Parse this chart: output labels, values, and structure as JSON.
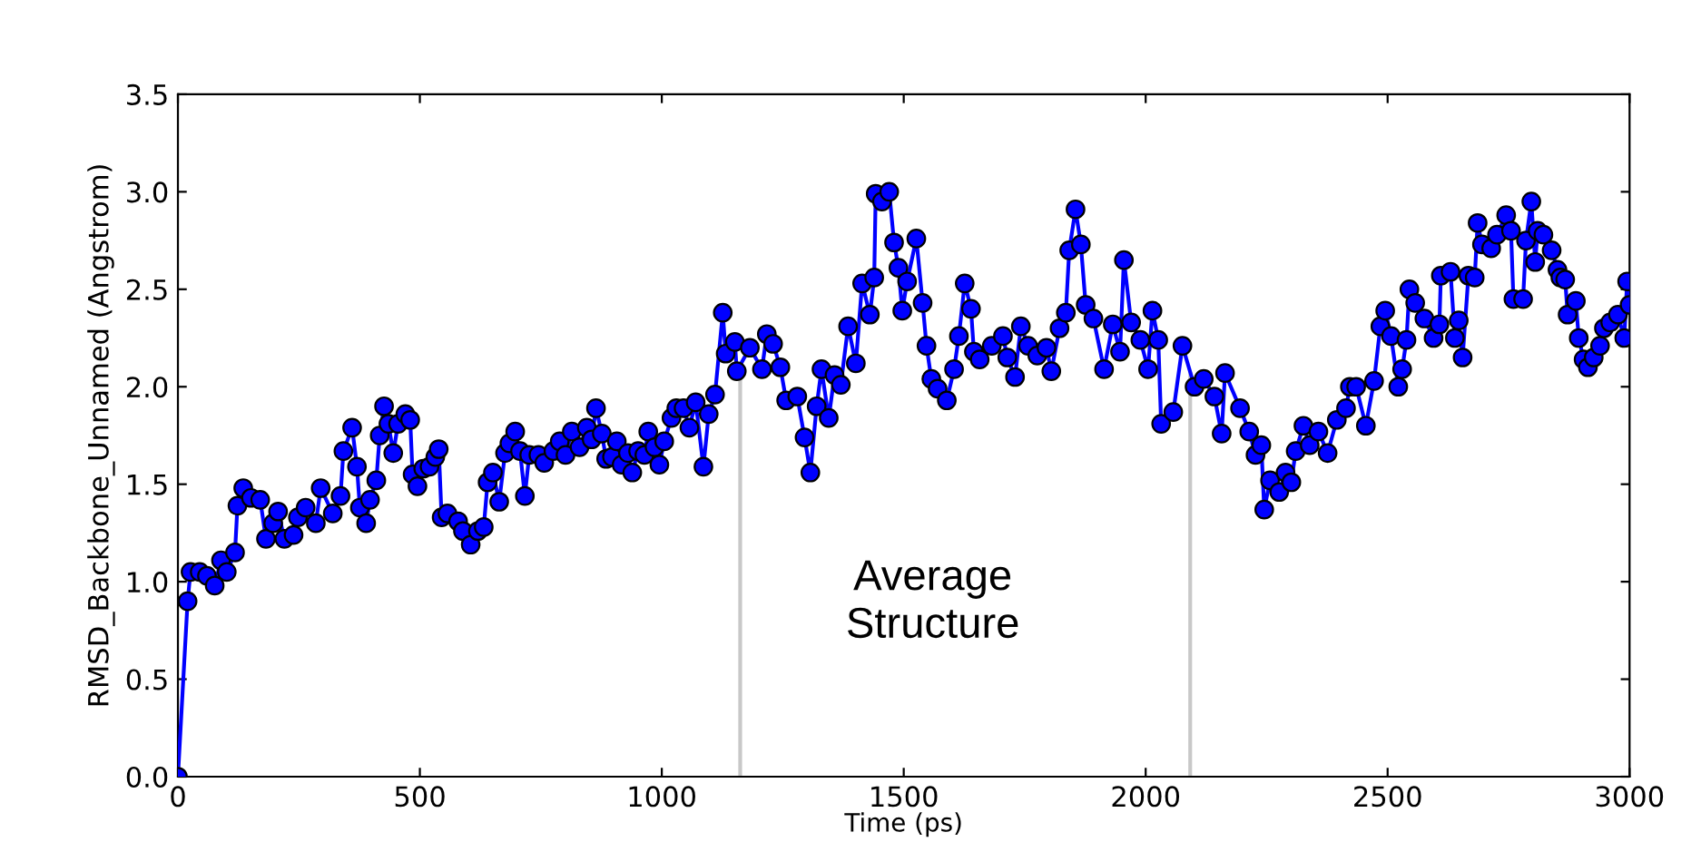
{
  "chart_data": {
    "type": "line",
    "xlabel": "Time (ps)",
    "ylabel": "RMSD_Backbone_Unnamed (Angstrom)",
    "xlim": [
      0,
      3000
    ],
    "xticks": [
      0,
      500,
      1000,
      1500,
      2000,
      2500,
      3000
    ],
    "ylim": [
      0.0,
      3.5
    ],
    "yticks": [
      {
        "value": 0,
        "label": "0.0"
      },
      {
        "value": 0.5,
        "label": "0.5"
      },
      {
        "value": 1,
        "label": "1.0"
      },
      {
        "value": 1.5,
        "label": "1.5"
      },
      {
        "value": 2,
        "label": "2.0"
      },
      {
        "value": 2.5,
        "label": "2.5"
      },
      {
        "value": 3,
        "label": "3.0"
      },
      {
        "value": 3.5,
        "label": "3.5"
      }
    ],
    "grid": false,
    "marker": "circle",
    "line_style": "solid",
    "annotations": [
      "Average\nStructure"
    ],
    "ref_lines": [
      {
        "axis": "x",
        "value": 1162,
        "label": null,
        "color": "#c8c8c8"
      },
      {
        "axis": "x",
        "value": 2092,
        "label": null,
        "color": "#c8c8c8"
      }
    ],
    "series": [
      {
        "color": "#0000ff",
        "x": [
          0,
          20,
          26,
          45,
          60,
          76,
          89,
          101,
          118,
          123,
          135,
          151,
          170,
          182,
          197,
          207,
          220,
          239,
          248,
          264,
          285,
          295,
          320,
          336,
          342,
          360,
          370,
          376,
          389,
          397,
          410,
          417,
          426,
          435,
          445,
          455,
          470,
          480,
          485,
          495,
          507,
          520,
          532,
          539,
          545,
          557,
          579,
          589,
          605,
          620,
          632,
          640,
          651,
          664,
          676,
          685,
          697,
          707,
          717,
          726,
          745,
          757,
          776,
          789,
          801,
          814,
          830,
          845,
          855,
          864,
          876,
          885,
          897,
          907,
          917,
          930,
          939,
          951,
          964,
          972,
          985,
          995,
          1005,
          1020,
          1030,
          1045,
          1057,
          1070,
          1086,
          1097,
          1110,
          1126,
          1132,
          1151,
          1155,
          1182,
          1207,
          1217,
          1230,
          1245,
          1257,
          1280,
          1295,
          1307,
          1320,
          1330,
          1345,
          1357,
          1370,
          1385,
          1401,
          1414,
          1430,
          1439,
          1442,
          1455,
          1470,
          1480,
          1489,
          1497,
          1507,
          1526,
          1539,
          1547,
          1557,
          1570,
          1589,
          1604,
          1614,
          1626,
          1639,
          1645,
          1657,
          1682,
          1705,
          1714,
          1730,
          1742,
          1757,
          1776,
          1795,
          1805,
          1822,
          1835,
          1842,
          1855,
          1866,
          1876,
          1892,
          1914,
          1932,
          1947,
          1955,
          1970,
          1989,
          2005,
          2014,
          2026,
          2032,
          2057,
          2076,
          2101,
          2120,
          2142,
          2157,
          2164,
          2195,
          2214,
          2227,
          2239,
          2245,
          2257,
          2276,
          2289,
          2301,
          2310,
          2326,
          2339,
          2357,
          2376,
          2395,
          2414,
          2422,
          2435,
          2455,
          2472,
          2485,
          2495,
          2507,
          2522,
          2530,
          2539,
          2545,
          2557,
          2576,
          2595,
          2607,
          2610,
          2630,
          2639,
          2647,
          2655,
          2667,
          2680,
          2686,
          2695,
          2714,
          2726,
          2745,
          2755,
          2760,
          2780,
          2786,
          2797,
          2805,
          2810,
          2822,
          2839,
          2851,
          2857,
          2867,
          2872,
          2889,
          2895,
          2905,
          2914,
          2926,
          2939,
          2947,
          2960,
          2976,
          2989,
          2995,
          3000
        ],
        "values": [
          0.0,
          0.9,
          1.05,
          1.05,
          1.03,
          0.98,
          1.11,
          1.05,
          1.15,
          1.39,
          1.48,
          1.43,
          1.42,
          1.22,
          1.3,
          1.36,
          1.22,
          1.24,
          1.33,
          1.38,
          1.3,
          1.48,
          1.35,
          1.44,
          1.67,
          1.79,
          1.59,
          1.38,
          1.3,
          1.42,
          1.52,
          1.75,
          1.9,
          1.81,
          1.66,
          1.81,
          1.86,
          1.83,
          1.55,
          1.49,
          1.58,
          1.59,
          1.64,
          1.68,
          1.33,
          1.35,
          1.31,
          1.26,
          1.19,
          1.26,
          1.28,
          1.51,
          1.56,
          1.41,
          1.66,
          1.71,
          1.77,
          1.67,
          1.44,
          1.65,
          1.65,
          1.61,
          1.67,
          1.72,
          1.65,
          1.77,
          1.69,
          1.79,
          1.73,
          1.89,
          1.76,
          1.63,
          1.64,
          1.72,
          1.6,
          1.66,
          1.56,
          1.67,
          1.65,
          1.77,
          1.69,
          1.6,
          1.72,
          1.84,
          1.89,
          1.89,
          1.79,
          1.92,
          1.59,
          1.86,
          1.96,
          2.38,
          2.17,
          2.23,
          2.08,
          2.2,
          2.09,
          2.27,
          2.22,
          2.1,
          1.93,
          1.95,
          1.74,
          1.56,
          1.9,
          2.09,
          1.84,
          2.06,
          2.01,
          2.31,
          2.12,
          2.53,
          2.37,
          2.56,
          2.99,
          2.95,
          3.0,
          2.74,
          2.61,
          2.39,
          2.54,
          2.76,
          2.43,
          2.21,
          2.04,
          1.99,
          1.93,
          2.09,
          2.26,
          2.53,
          2.4,
          2.18,
          2.14,
          2.21,
          2.26,
          2.15,
          2.05,
          2.31,
          2.21,
          2.16,
          2.2,
          2.08,
          2.3,
          2.38,
          2.7,
          2.91,
          2.73,
          2.42,
          2.35,
          2.09,
          2.32,
          2.18,
          2.65,
          2.33,
          2.24,
          2.09,
          2.39,
          2.24,
          1.81,
          1.87,
          2.21,
          2.0,
          2.04,
          1.95,
          1.76,
          2.07,
          1.89,
          1.77,
          1.65,
          1.7,
          1.37,
          1.52,
          1.46,
          1.56,
          1.51,
          1.67,
          1.8,
          1.7,
          1.77,
          1.66,
          1.83,
          1.89,
          2.0,
          2.0,
          1.8,
          2.03,
          2.31,
          2.39,
          2.26,
          2.0,
          2.09,
          2.24,
          2.5,
          2.43,
          2.35,
          2.25,
          2.32,
          2.57,
          2.59,
          2.25,
          2.34,
          2.15,
          2.57,
          2.56,
          2.84,
          2.73,
          2.71,
          2.78,
          2.88,
          2.8,
          2.45,
          2.45,
          2.75,
          2.95,
          2.64,
          2.8,
          2.78,
          2.7,
          2.6,
          2.56,
          2.55,
          2.37,
          2.44,
          2.25,
          2.14,
          2.1,
          2.15,
          2.21,
          2.3,
          2.33,
          2.37,
          2.25,
          2.54,
          2.42
        ]
      }
    ]
  }
}
